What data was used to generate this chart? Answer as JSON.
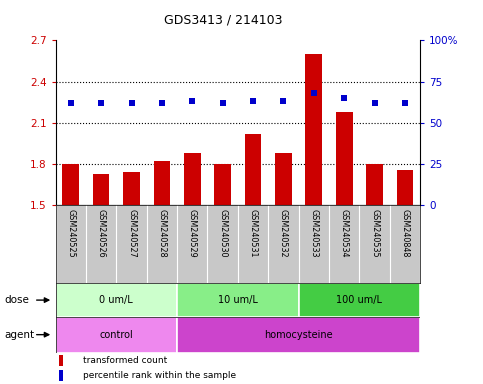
{
  "title": "GDS3413 / 214103",
  "samples": [
    "GSM240525",
    "GSM240526",
    "GSM240527",
    "GSM240528",
    "GSM240529",
    "GSM240530",
    "GSM240531",
    "GSM240532",
    "GSM240533",
    "GSM240534",
    "GSM240535",
    "GSM240848"
  ],
  "bar_values": [
    1.8,
    1.73,
    1.74,
    1.82,
    1.88,
    1.8,
    2.02,
    1.88,
    2.6,
    2.18,
    1.8,
    1.76
  ],
  "dot_values": [
    62,
    62,
    62,
    62,
    63,
    62,
    63,
    63,
    68,
    65,
    62,
    62
  ],
  "bar_color": "#cc0000",
  "dot_color": "#0000cc",
  "ylim_left": [
    1.5,
    2.7
  ],
  "ylim_right": [
    0,
    100
  ],
  "yticks_left": [
    1.5,
    1.8,
    2.1,
    2.4,
    2.7
  ],
  "ytick_labels_left": [
    "1.5",
    "1.8",
    "2.1",
    "2.4",
    "2.7"
  ],
  "yticks_right": [
    0,
    25,
    50,
    75,
    100
  ],
  "ytick_labels_right": [
    "0",
    "25",
    "50",
    "75",
    "100%"
  ],
  "hgrid_values": [
    1.8,
    2.1,
    2.4
  ],
  "dose_groups": [
    {
      "label": "0 um/L",
      "start": 0,
      "end": 4,
      "color": "#ccffcc"
    },
    {
      "label": "10 um/L",
      "start": 4,
      "end": 8,
      "color": "#88ee88"
    },
    {
      "label": "100 um/L",
      "start": 8,
      "end": 12,
      "color": "#44cc44"
    }
  ],
  "agent_groups": [
    {
      "label": "control",
      "start": 0,
      "end": 4,
      "color": "#ee88ee"
    },
    {
      "label": "homocysteine",
      "start": 4,
      "end": 12,
      "color": "#cc44cc"
    }
  ],
  "dose_label": "dose",
  "agent_label": "agent",
  "legend_bar": "transformed count",
  "legend_dot": "percentile rank within the sample",
  "tick_area_bg": "#c8c8c8",
  "fig_width": 4.83,
  "fig_height": 3.84,
  "dpi": 100
}
